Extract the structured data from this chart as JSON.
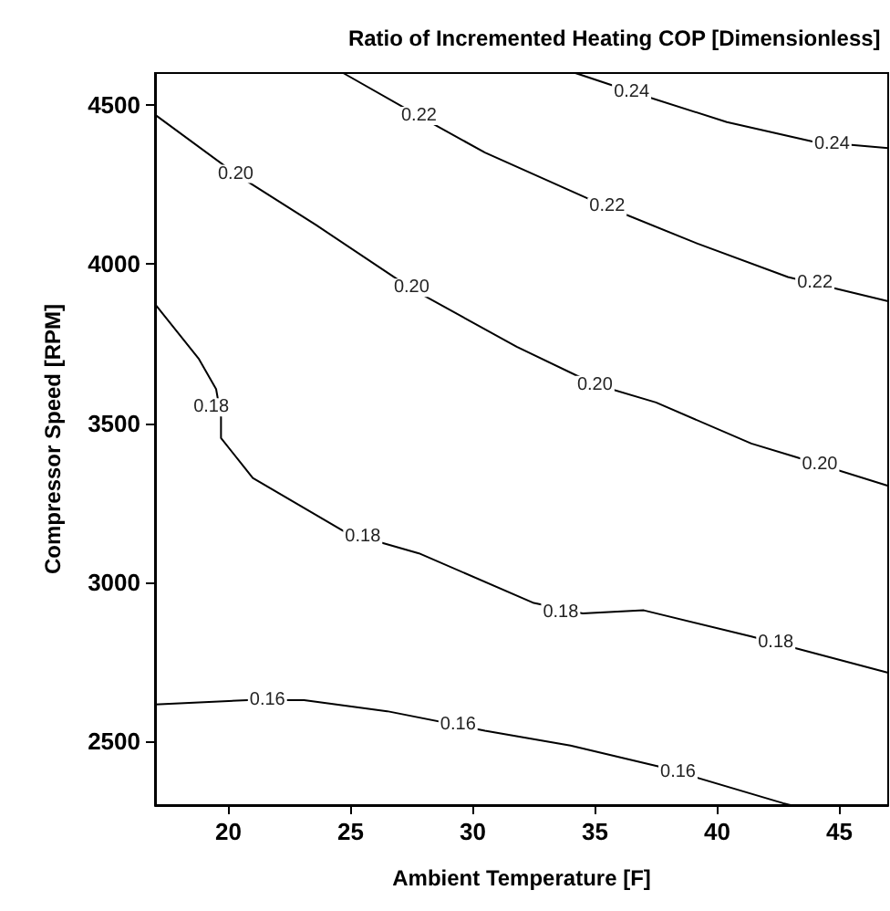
{
  "chart_data": {
    "type": "line",
    "title": "Ratio of Incremented Heating COP [Dimensionless]",
    "xlabel": "Ambient Temperature [F]",
    "ylabel": "Compressor Speed [RPM]",
    "xlim": [
      17,
      47
    ],
    "ylim": [
      2300,
      4600
    ],
    "xticks": [
      20,
      25,
      30,
      35,
      40,
      45
    ],
    "yticks": [
      2500,
      3000,
      3500,
      4000,
      4500
    ],
    "marker": "none",
    "line_style": "solid",
    "series": [
      {
        "color": "#000000",
        "x": [
          17,
          20.8,
          23.1,
          26.5,
          30.5,
          34.0,
          37.7,
          42.7,
          43.0
        ],
        "values": [
          2616,
          2630,
          2630,
          2595,
          2534,
          2487,
          2420,
          2306,
          2300
        ]
      },
      {
        "color": "#000000",
        "x": [
          17,
          18.8,
          19.5,
          19.7,
          19.7,
          21.0,
          24.8,
          27.8,
          32.5,
          34.5,
          37.0,
          41.4,
          47
        ],
        "values": [
          3874,
          3701,
          3607,
          3520,
          3453,
          3328,
          3157,
          3091,
          2935,
          2902,
          2912,
          2830,
          2716
        ]
      },
      {
        "color": "#000000",
        "x": [
          17,
          20.3,
          23.6,
          27.5,
          31.8,
          35.0,
          37.5,
          41.4,
          43.2,
          47
        ],
        "values": [
          4469,
          4283,
          4122,
          3922,
          3740,
          3622,
          3565,
          3436,
          3394,
          3303
        ]
      },
      {
        "color": "#000000",
        "x": [
          24.7,
          27.8,
          30.5,
          35.5,
          39.2,
          42.9,
          47
        ],
        "values": [
          4600,
          4465,
          4350,
          4179,
          4064,
          3959,
          3883
        ]
      },
      {
        "color": "#000000",
        "x": [
          34.2,
          36.5,
          40.4,
          43.9,
          47
        ],
        "values": [
          4600,
          4541,
          4446,
          4385,
          4364
        ]
      }
    ],
    "annotations": [
      {
        "text": "0.16",
        "x": 21.6,
        "y": 2630
      },
      {
        "text": "0.16",
        "x": 29.4,
        "y": 2551
      },
      {
        "text": "0.16",
        "x": 38.4,
        "y": 2404
      },
      {
        "text": "0.18",
        "x": 19.3,
        "y": 3550
      },
      {
        "text": "0.18",
        "x": 25.5,
        "y": 3144
      },
      {
        "text": "0.18",
        "x": 33.6,
        "y": 2905
      },
      {
        "text": "0.18",
        "x": 42.4,
        "y": 2810
      },
      {
        "text": "0.20",
        "x": 20.3,
        "y": 4283
      },
      {
        "text": "0.20",
        "x": 27.5,
        "y": 3925
      },
      {
        "text": "0.20",
        "x": 35.0,
        "y": 3620
      },
      {
        "text": "0.20",
        "x": 44.2,
        "y": 3370
      },
      {
        "text": "0.22",
        "x": 27.8,
        "y": 4465
      },
      {
        "text": "0.22",
        "x": 35.5,
        "y": 4180
      },
      {
        "text": "0.22",
        "x": 44.0,
        "y": 3939
      },
      {
        "text": "0.24",
        "x": 36.5,
        "y": 4540
      },
      {
        "text": "0.24",
        "x": 44.7,
        "y": 4377
      }
    ]
  }
}
